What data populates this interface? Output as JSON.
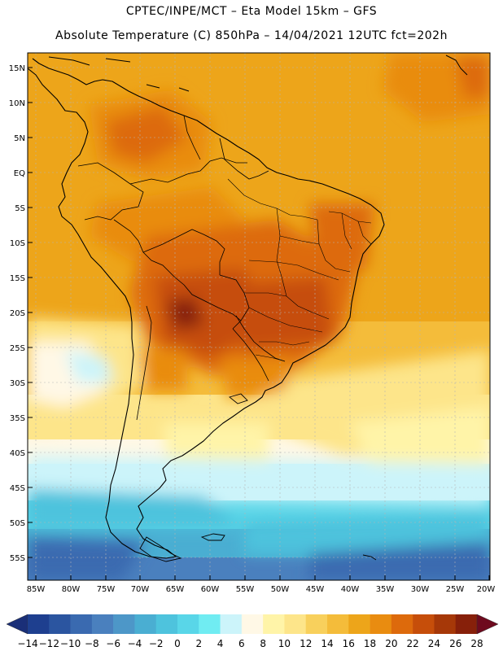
{
  "header": {
    "line1": "CPTEC/INPE/MCT –  Eta Model 15km – GFS",
    "line2": "Absolute Temperature (C) 850hPa – 14/04/2021 12UTC fct=202h"
  },
  "map": {
    "lon_range": [
      -86,
      -20
    ],
    "lat_range": [
      -58,
      17
    ],
    "lat_ticks": [
      "15N",
      "10N",
      "5N",
      "EQ",
      "5S",
      "10S",
      "15S",
      "20S",
      "25S",
      "30S",
      "35S",
      "40S",
      "45S",
      "50S",
      "55S"
    ],
    "lat_values": [
      15,
      10,
      5,
      0,
      -5,
      -10,
      -15,
      -20,
      -25,
      -30,
      -35,
      -40,
      -45,
      -50,
      -55
    ],
    "lon_ticks": [
      "85W",
      "80W",
      "75W",
      "70W",
      "65W",
      "60W",
      "55W",
      "50W",
      "45W",
      "40W",
      "35W",
      "30W",
      "25W",
      "20W"
    ],
    "lon_values": [
      -85,
      -80,
      -75,
      -70,
      -65,
      -60,
      -55,
      -50,
      -45,
      -40,
      -35,
      -30,
      -25,
      -20
    ],
    "grid": true
  },
  "colorbar": {
    "labels": [
      "-14",
      "-12",
      "-10",
      "-8",
      "-6",
      "-4",
      "-2",
      "0",
      "2",
      "4",
      "6",
      "8",
      "10",
      "12",
      "14",
      "16",
      "18",
      "20",
      "22",
      "24",
      "26",
      "28"
    ],
    "colors": [
      "#1e3f8f",
      "#2b55a0",
      "#3a6ab0",
      "#4a80be",
      "#4d97c8",
      "#4aaed2",
      "#4ec3dd",
      "#59d6e8",
      "#70ecf2",
      "#ccf4fa",
      "#fff8e6",
      "#fff4a8",
      "#fde58a",
      "#f8d05c",
      "#f4bc3a",
      "#eda51a",
      "#e98c10",
      "#dd6a0c",
      "#c64e0a",
      "#a63808",
      "#87200a"
    ],
    "under_color": "#1a2f78",
    "over_color": "#6e0a1e"
  }
}
